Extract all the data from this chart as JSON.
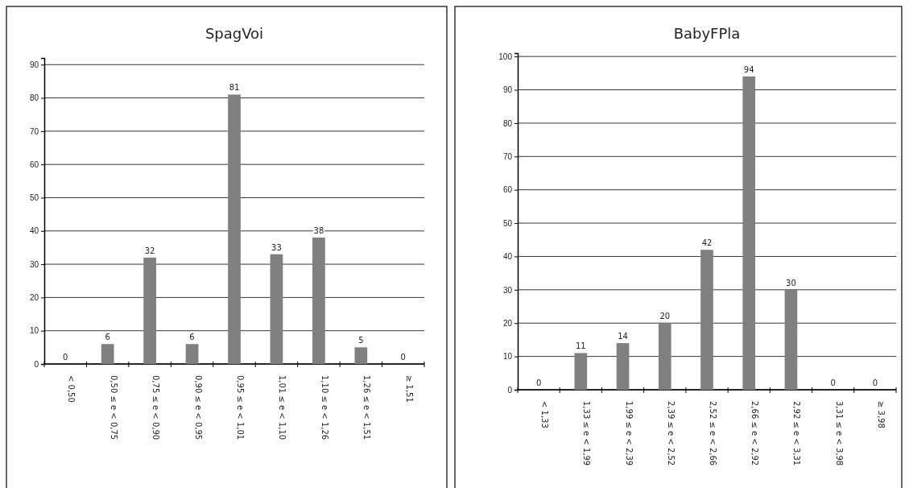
{
  "chart_data": [
    {
      "type": "bar",
      "title": "SpagVoi",
      "categories": [
        "< 0,50",
        "0,50 ≤ e < 0,75",
        "0,75 ≤ e < 0,90",
        "0,90 ≤ e < 0,95",
        "0,95 ≤ e < 1,01",
        "1,01 ≤ e < 1,10",
        "1,10 ≤ e < 1,26",
        "1,26 ≤ e < 1,51",
        "≥ 1,51"
      ],
      "values": [
        0,
        6,
        32,
        6,
        81,
        33,
        38,
        5,
        0
      ],
      "color": "#808080",
      "ylim": [
        0,
        92
      ],
      "yticks": [
        0,
        10,
        20,
        30,
        40,
        50,
        60,
        70,
        80,
        90
      ],
      "grid": "y",
      "data_labels": true
    },
    {
      "type": "bar",
      "title": "BabyFPla",
      "categories": [
        "< 1,33",
        "1,33 ≤ e < 1,99",
        "1,99 ≤ e < 2,39",
        "2,39 ≤ e < 2,52",
        "2,52 ≤ e < 2,66",
        "2,66 ≤ e < 2,92",
        "2,92 ≤ e < 3,31",
        "3,31 ≤ e < 3,98",
        "≥ 3,98"
      ],
      "values": [
        0,
        11,
        14,
        20,
        42,
        94,
        30,
        0,
        0
      ],
      "color": "#808080",
      "ylim": [
        0,
        101
      ],
      "yticks": [
        0,
        10,
        20,
        30,
        40,
        50,
        60,
        70,
        80,
        90,
        100
      ],
      "grid": "y",
      "data_labels": true
    }
  ]
}
